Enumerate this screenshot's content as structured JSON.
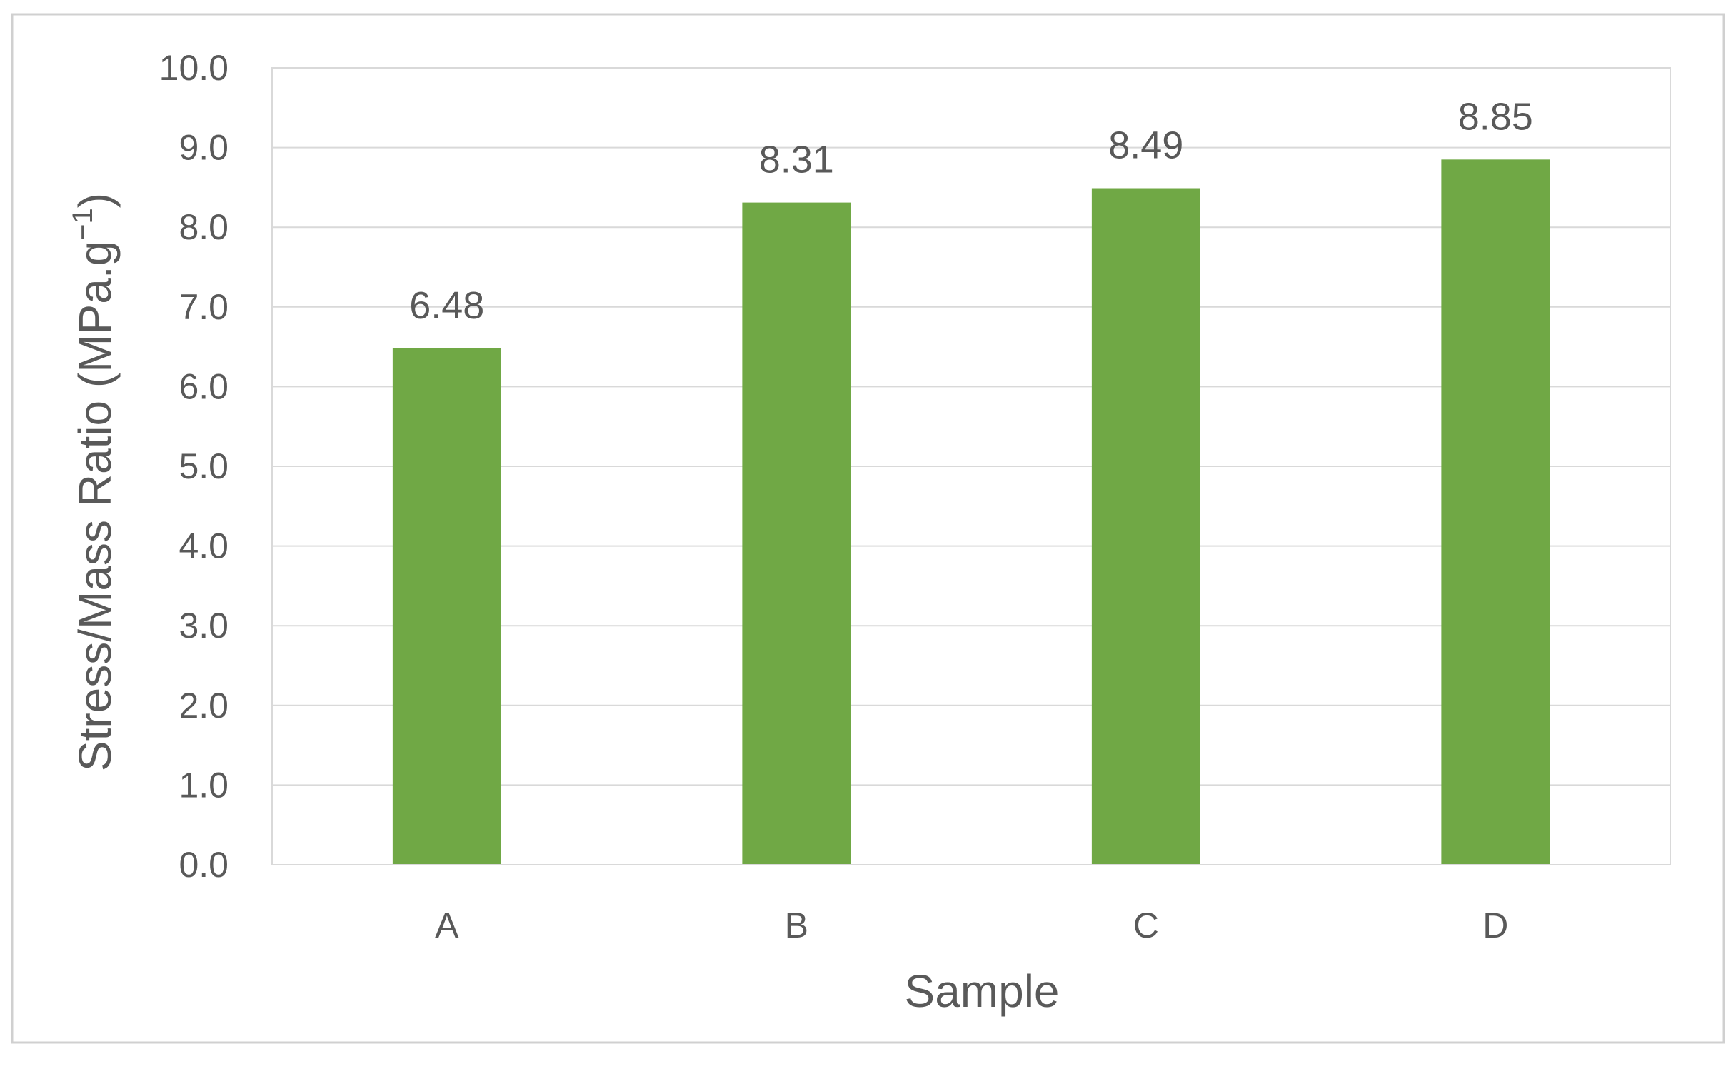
{
  "chart_data": {
    "type": "bar",
    "categories": [
      "A",
      "B",
      "C",
      "D"
    ],
    "values": [
      6.48,
      8.31,
      8.49,
      8.85
    ],
    "data_labels": [
      "6.48",
      "8.31",
      "8.49",
      "8.85"
    ],
    "xlabel": "Sample",
    "ylabel": {
      "main": "Stress/Mass Ratio (MPa.g",
      "superscript": "−1",
      "close": ")"
    },
    "ylim": [
      0,
      10
    ],
    "y_ticks": [
      "0.0",
      "1.0",
      "2.0",
      "3.0",
      "4.0",
      "5.0",
      "6.0",
      "7.0",
      "8.0",
      "9.0",
      "10.0"
    ],
    "grid": true,
    "legend": "none",
    "bar_color": "#70a845"
  }
}
